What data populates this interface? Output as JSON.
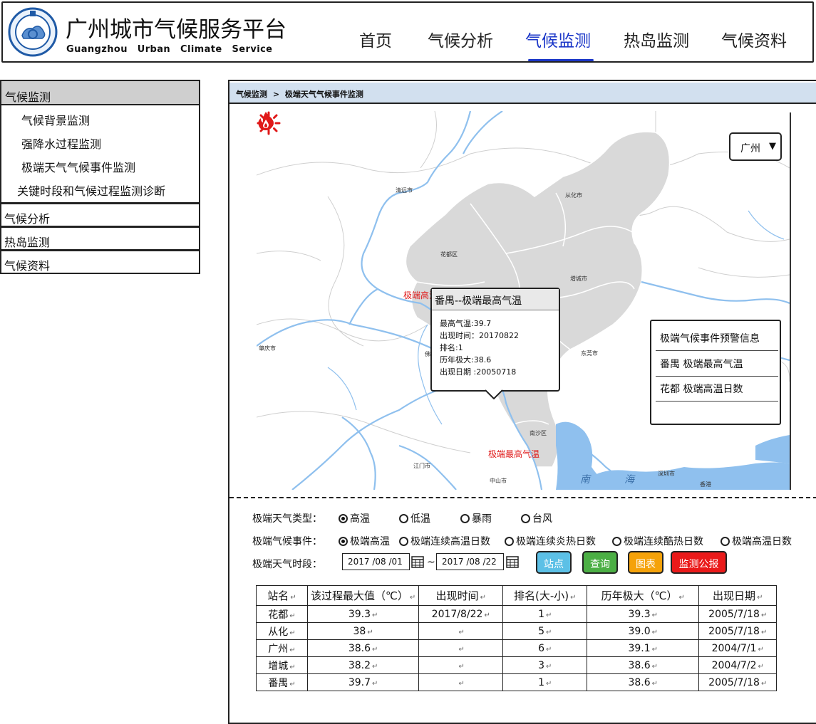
{
  "header": {
    "title_cn": "广州城市气候服务平台",
    "title_en": "Guangzhou  Urban  Climate  Service  Platform",
    "nav": [
      {
        "label": "首页",
        "active": false
      },
      {
        "label": "气候分析",
        "active": false
      },
      {
        "label": "气候监测",
        "active": true
      },
      {
        "label": "热岛监测",
        "active": false
      },
      {
        "label": "气候资料",
        "active": false
      }
    ],
    "accent_color": "#1a36c8"
  },
  "sidebar": {
    "active_section": "气候监测",
    "sub_items": [
      "气候背景监测",
      "强降水过程监测",
      "极端天气气候事件监测",
      "关键时段和气候过程监测诊断"
    ],
    "sections": [
      "气候分析",
      "热岛监测",
      "气候资料"
    ]
  },
  "breadcrumb": {
    "parent": "气候监测",
    "separator": ">",
    "current": "极端天气气候事件监测"
  },
  "map": {
    "city_select": "广州",
    "place_labels": {
      "qingyuan": "清远市",
      "conghua": "从化市",
      "huadu": "花都区",
      "zengcheng": "增城市",
      "zhaoqing": "肇庆市",
      "dongguan": "东莞市",
      "nansha": "南沙区",
      "jiangmen": "江门市",
      "zhongshan": "中山市",
      "shenzhen": "深圳市",
      "hongkong": "香港",
      "fo": "佛",
      "nan": "南",
      "hai": "海"
    },
    "markers": {
      "sun_label": "极端高温日数",
      "fire_label": "极端最高气温"
    },
    "marker_color": "#e01818",
    "popup": {
      "title": "番禺--极端最高气温",
      "lines": [
        "最高气温:39.7",
        "出现时间：20170822",
        "排名:1",
        "历年极大:38.6",
        "出现日期  :20050718"
      ]
    },
    "warning_panel": {
      "title": "极端气候事件预警信息",
      "rows": [
        "番禺    极端最高气温",
        "花都    极端高温日数"
      ]
    }
  },
  "controls": {
    "type_label": "极端天气类型：",
    "type_options": [
      {
        "label": "高温",
        "selected": true
      },
      {
        "label": "低温",
        "selected": false
      },
      {
        "label": "暴雨",
        "selected": false
      },
      {
        "label": "台风",
        "selected": false
      }
    ],
    "event_label": "极端气候事件：",
    "event_options": [
      {
        "label": "极端高温",
        "selected": true
      },
      {
        "label": "极端连续高温日数",
        "selected": false
      },
      {
        "label": "极端连续炎热日数",
        "selected": false
      },
      {
        "label": "极端连续酷热日数",
        "selected": false
      },
      {
        "label": "极端高温日数",
        "selected": false
      }
    ],
    "period_label": "极端天气时段：",
    "date_from": "2017 /08 /01",
    "date_to": "2017 /08 /22",
    "date_sep": "~",
    "buttons": [
      {
        "label": "站点",
        "color": "#5cc0e6"
      },
      {
        "label": "查询",
        "color": "#4caf45"
      },
      {
        "label": "图表",
        "color": "#f5a20a"
      },
      {
        "label": "监测公报",
        "color": "#ea1a1a"
      }
    ]
  },
  "table": {
    "headers": [
      "站名",
      "该过程最大值（℃）",
      "出现时间",
      "排名(大-小)",
      "历年极大（℃）",
      "出现日期"
    ],
    "rows": [
      [
        "花都",
        "39.3",
        "2017/8/22",
        "1",
        "39.3",
        "2005/7/18"
      ],
      [
        "从化",
        "38",
        "",
        "5",
        "39.0",
        "2005/7/18"
      ],
      [
        "广州",
        "38.6",
        "",
        "6",
        "39.1",
        "2004/7/1"
      ],
      [
        "增城",
        "38.2",
        "",
        "3",
        "38.6",
        "2004/7/2"
      ],
      [
        "番禺",
        "39.7",
        "",
        "1",
        "38.6",
        "2005/7/18"
      ]
    ]
  }
}
